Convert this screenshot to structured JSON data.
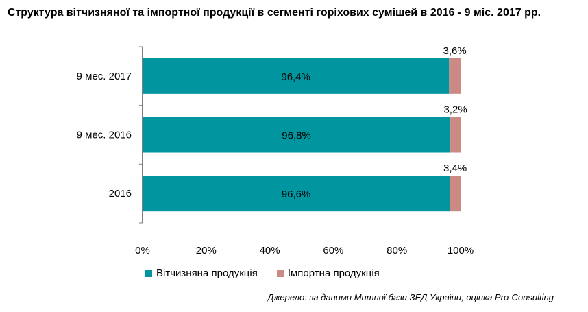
{
  "chart_data": {
    "type": "bar",
    "orientation": "horizontal",
    "stacked": true,
    "title": "Структура вітчизняної та імпортної продукції в сегменті горіхових сумішей в 2016 - 9 міс. 2017 рр.",
    "categories": [
      "9 мес. 2017",
      "9 мес. 2016",
      "2016"
    ],
    "series": [
      {
        "name": "Вітчизняна продукція",
        "values": [
          96.4,
          96.8,
          96.6
        ],
        "labels": [
          "96,4%",
          "96,8%",
          "96,6%"
        ],
        "color": "#00959f"
      },
      {
        "name": "Імпортна продукція",
        "values": [
          3.6,
          3.2,
          3.4
        ],
        "labels": [
          "3,6%",
          "3,2%",
          "3,4%"
        ],
        "color": "#cc8a84"
      }
    ],
    "xlim": [
      0,
      100
    ],
    "xticks": [
      "0%",
      "20%",
      "40%",
      "60%",
      "80%",
      "100%"
    ],
    "grid": false,
    "legend_position": "bottom"
  },
  "source": "Джерело: за даними Митної бази ЗЕД України; оцінка Pro-Consulting"
}
